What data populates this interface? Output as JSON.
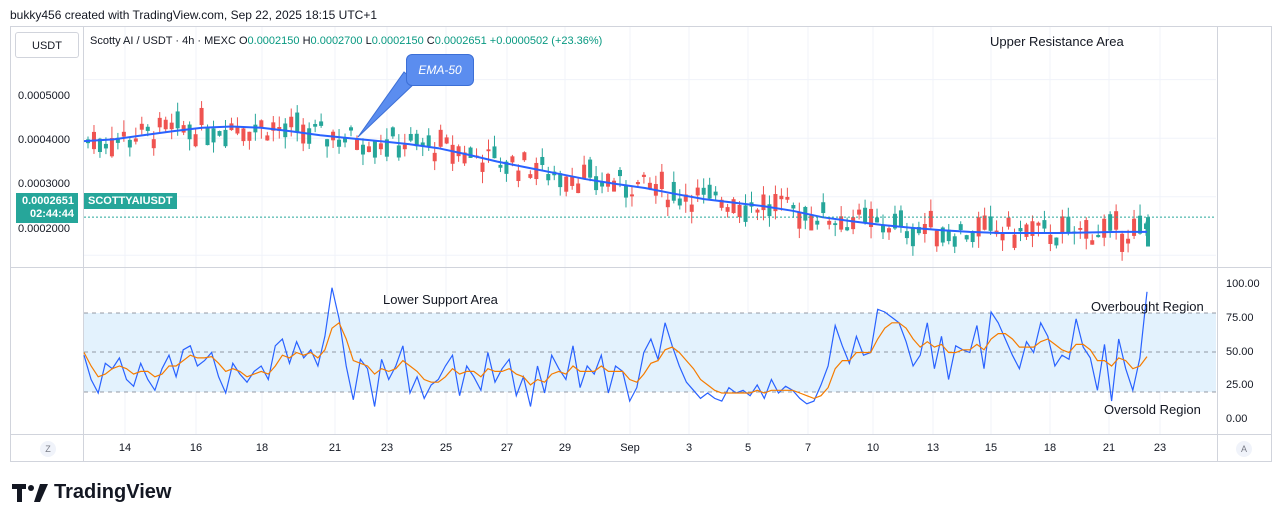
{
  "header": {
    "text": "bukky456 created with TradingView.com, Sep 22, 2025 18:15 UTC+1"
  },
  "currency_box": "USDT",
  "legend": {
    "pair": "Scotty AI / USDT · 4h · MEXC",
    "o_label": "O",
    "o": "0.0002150",
    "h_label": "H",
    "h": "0.0002700",
    "l_label": "L",
    "l": "0.0002150",
    "c_label": "C",
    "c": "0.0002651",
    "change": "+0.0000502 (+23.36%)"
  },
  "price_tag": {
    "price": "0.0002651",
    "countdown": "02:44:44",
    "symbol": "SCOTTYAIUSDT"
  },
  "price_axis": [
    "0.0005000",
    "0.0004000",
    "0.0003000",
    "0.0002000"
  ],
  "rsi_axis": [
    "100.00",
    "75.00",
    "50.00",
    "25.00",
    "0.00"
  ],
  "time_axis": [
    "14",
    "16",
    "18",
    "21",
    "23",
    "25",
    "27",
    "29",
    "Sep",
    "3",
    "5",
    "7",
    "10",
    "13",
    "15",
    "18",
    "21",
    "23"
  ],
  "annotations": {
    "upper_resistance": "Upper Resistance Area",
    "lower_support": "Lower Support Area",
    "overbought": "Overbought Region",
    "oversold": "Oversold Region",
    "ema_callout": "EMA-50"
  },
  "corner_left": "Z",
  "corner_right": "A",
  "logo_text": "TradingView",
  "colors": {
    "up": "#26a69a",
    "down": "#ef5350",
    "ema": "#2962ff",
    "rsi": "#2962ff",
    "signal": "#f57c00",
    "band": "#e3f2fd"
  },
  "chart_data": {
    "type": "candlestick",
    "ylim": [
      0.00018,
      0.00059
    ],
    "last_price": 0.0002651,
    "ema_50": [
      0.000395,
      0.000398,
      0.000405,
      0.000412,
      0.000418,
      0.00042,
      0.000418,
      0.000412,
      0.000405,
      0.0004,
      0.000395,
      0.00039,
      0.000383,
      0.000372,
      0.00036,
      0.00035,
      0.00034,
      0.00033,
      0.000322,
      0.000315,
      0.000305,
      0.000296,
      0.00029,
      0.000284,
      0.000276,
      0.000265,
      0.000258,
      0.000252,
      0.000247,
      0.000243,
      0.00024,
      0.000238,
      0.000238,
      0.000238,
      0.000239,
      0.00024,
      0.00024
    ],
    "candles_count": 178,
    "rsi_ylim": [
      0,
      100
    ],
    "rsi_levels": [
      80,
      50,
      20
    ],
    "rsi": [
      48,
      30,
      20,
      42,
      38,
      46,
      30,
      25,
      42,
      30,
      22,
      38,
      48,
      32,
      52,
      55,
      40,
      44,
      50,
      32,
      20,
      42,
      34,
      28,
      36,
      40,
      30,
      55,
      60,
      42,
      58,
      46,
      52,
      40,
      62,
      98,
      75,
      40,
      15,
      45,
      38,
      10,
      45,
      30,
      40,
      55,
      20,
      32,
      16,
      26,
      30,
      40,
      48,
      18,
      40,
      32,
      22,
      50,
      28,
      38,
      45,
      18,
      32,
      10,
      40,
      20,
      48,
      38,
      30,
      55,
      24,
      40,
      34,
      48,
      20,
      40,
      36,
      14,
      24,
      50,
      60,
      45,
      72,
      55,
      40,
      28,
      22,
      16,
      20,
      16,
      14,
      24,
      20,
      22,
      18,
      26,
      16,
      30,
      20,
      25,
      22,
      16,
      12,
      14,
      26,
      40,
      70,
      55,
      42,
      62,
      48,
      50,
      82,
      80,
      76,
      72,
      58,
      40,
      48,
      72,
      38,
      62,
      30,
      55,
      52,
      50,
      70,
      38,
      80,
      72,
      60,
      48,
      38,
      58,
      50,
      72,
      62,
      40,
      48,
      45,
      75,
      54,
      46,
      22,
      56,
      14,
      60,
      38,
      22,
      46,
      95
    ],
    "rsi_signal": [
      50,
      40,
      32,
      34,
      38,
      40,
      38,
      34,
      36,
      36,
      32,
      34,
      40,
      40,
      44,
      48,
      46,
      46,
      47,
      42,
      36,
      38,
      36,
      32,
      34,
      36,
      34,
      40,
      48,
      46,
      50,
      48,
      50,
      46,
      52,
      68,
      72,
      60,
      44,
      42,
      40,
      34,
      38,
      36,
      38,
      44,
      40,
      36,
      30,
      28,
      28,
      32,
      38,
      34,
      36,
      36,
      32,
      38,
      36,
      36,
      38,
      34,
      32,
      26,
      30,
      28,
      34,
      36,
      34,
      40,
      36,
      36,
      36,
      40,
      36,
      36,
      36,
      30,
      28,
      34,
      42,
      44,
      52,
      54,
      50,
      44,
      38,
      30,
      26,
      22,
      20,
      20,
      20,
      20,
      20,
      22,
      20,
      22,
      22,
      22,
      22,
      20,
      18,
      16,
      18,
      24,
      38,
      44,
      44,
      50,
      50,
      50,
      60,
      68,
      72,
      72,
      68,
      60,
      54,
      58,
      54,
      56,
      50,
      50,
      52,
      52,
      56,
      52,
      60,
      64,
      64,
      60,
      54,
      54,
      54,
      58,
      60,
      56,
      52,
      50,
      56,
      56,
      52,
      44,
      44,
      40,
      46,
      44,
      38,
      40,
      47
    ]
  }
}
